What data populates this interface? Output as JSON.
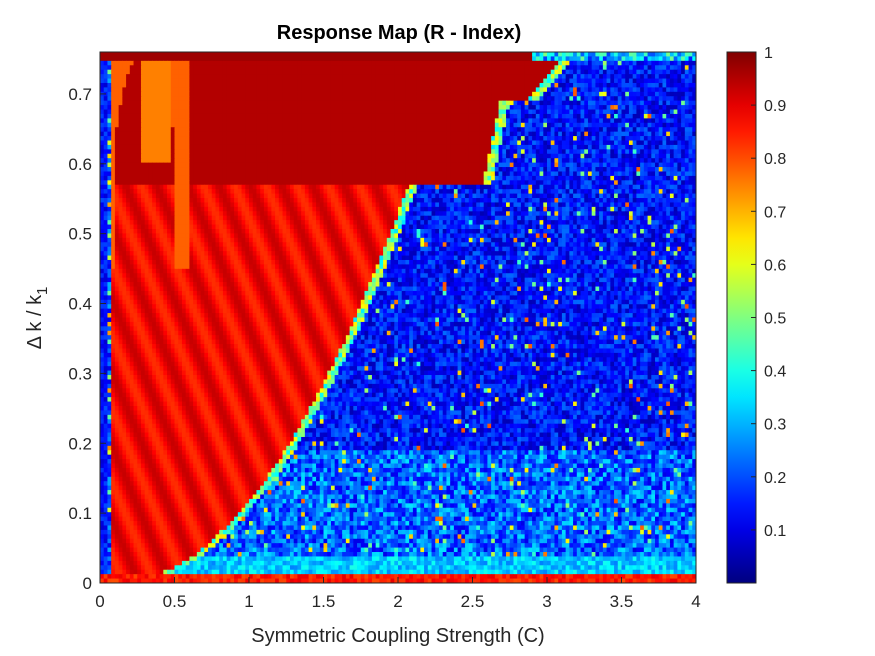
{
  "chart_data": {
    "type": "heatmap",
    "title": "Response Map (R - Index)",
    "xlabel": "Symmetric Coupling Strength (C)",
    "ylabel_main": "Δ k / k",
    "ylabel_sub": "1",
    "xlim": [
      0,
      4
    ],
    "ylim": [
      0,
      0.76
    ],
    "xticks": [
      "0",
      "0.5",
      "1",
      "1.5",
      "2",
      "2.5",
      "3",
      "3.5",
      "4"
    ],
    "xtick_values": [
      0,
      0.5,
      1,
      1.5,
      2,
      2.5,
      3,
      3.5,
      4
    ],
    "yticks": [
      "0",
      "0.1",
      "0.2",
      "0.3",
      "0.4",
      "0.5",
      "0.6",
      "0.7"
    ],
    "ytick_values": [
      0,
      0.1,
      0.2,
      0.3,
      0.4,
      0.5,
      0.6,
      0.7
    ],
    "colorbar": {
      "colormap": "jet",
      "clim": [
        0,
        1
      ],
      "ticks": [
        "0.1",
        "0.2",
        "0.3",
        "0.4",
        "0.5",
        "0.6",
        "0.7",
        "0.8",
        "0.9",
        "1"
      ],
      "tick_values": [
        0.1,
        0.2,
        0.3,
        0.4,
        0.5,
        0.6,
        0.7,
        0.8,
        0.9,
        1.0
      ]
    },
    "grid_resolution": {
      "nx": 160,
      "ny": 120
    },
    "regions": {
      "synchronized_boundary": "C ≈ 0.14 + 2.6·sqrt(Δk/k1), stepped near Δk/k1 = 0.57 and 0.69",
      "high_R_value": 0.88,
      "high_R_top_band_value": 0.97,
      "low_R_background_range": [
        0.05,
        0.3
      ],
      "bottom_band_value": 0.9,
      "left_edge_low_strip_C": [
        0,
        0.08
      ]
    }
  }
}
